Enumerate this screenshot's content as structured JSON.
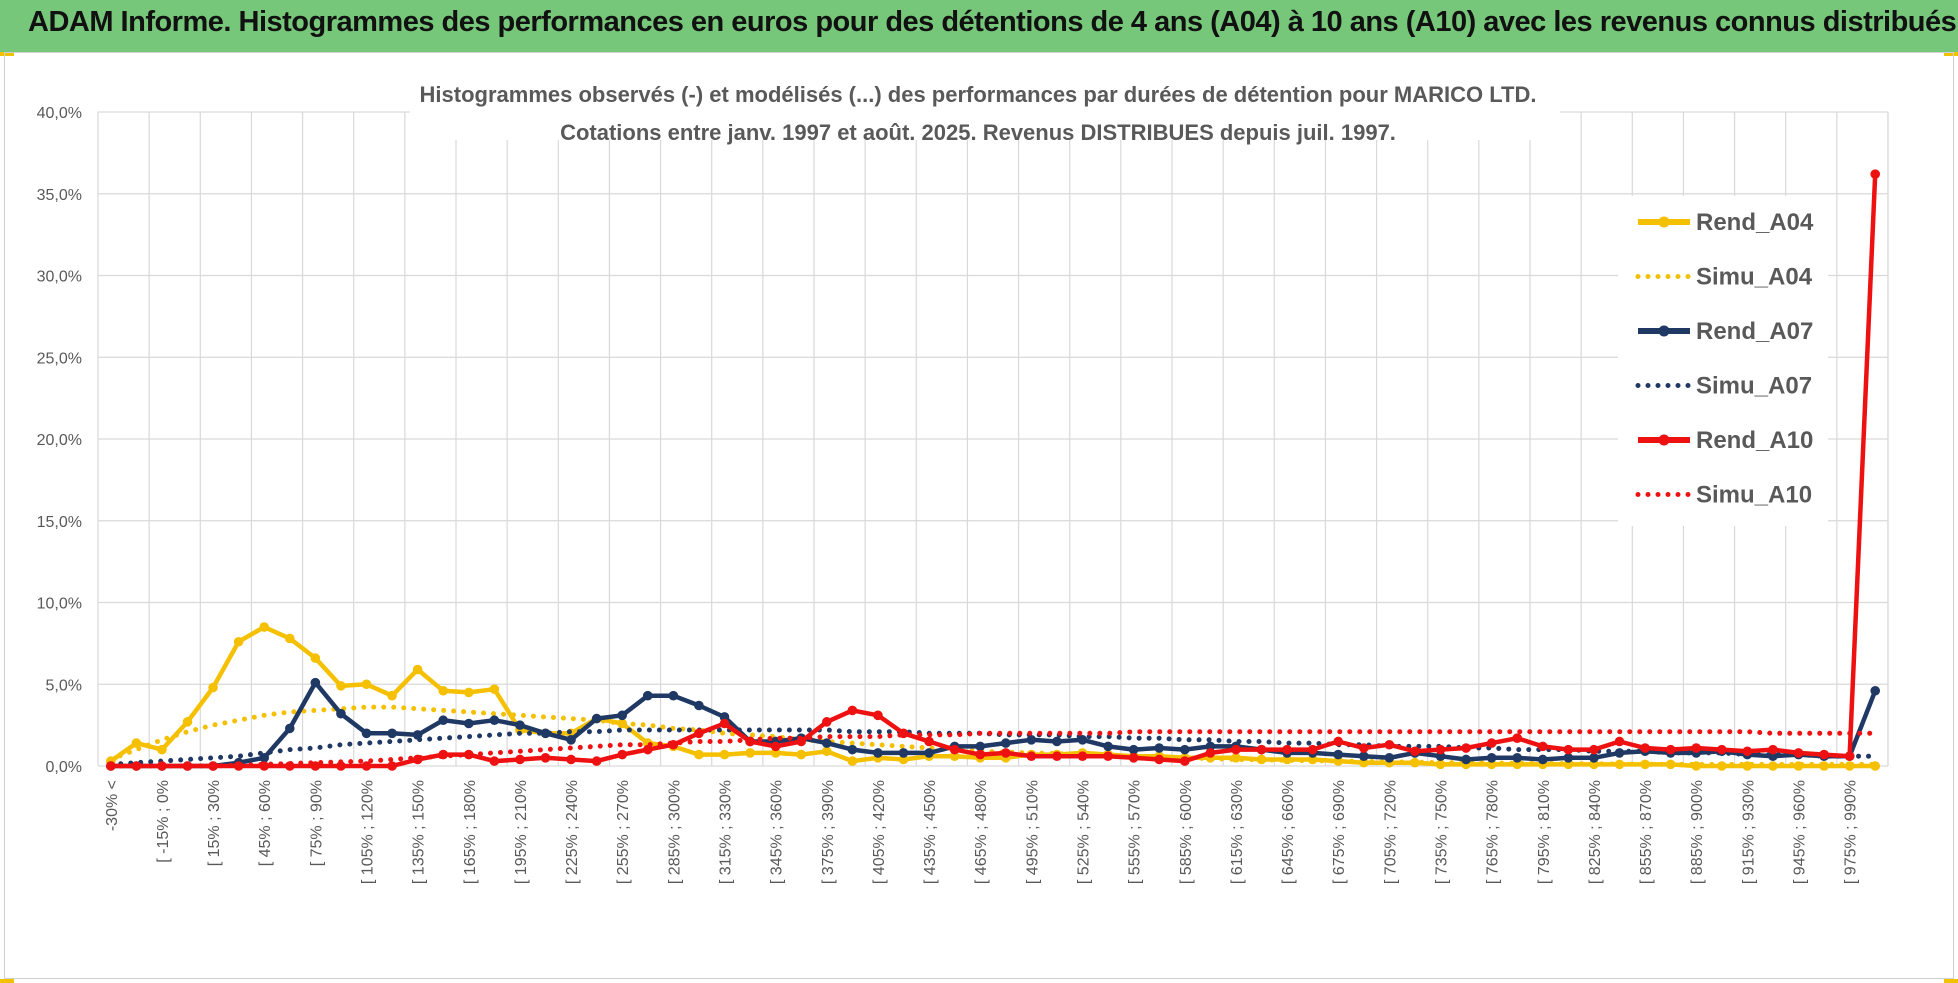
{
  "page": {
    "banner_title": "ADAM Informe. Histogrammes des performances en euros pour des détentions de 4 ans (A04) à 10 ans (A10) avec les revenus connus distribués",
    "banner_color": "#77c77a"
  },
  "chart_data": {
    "type": "line",
    "title": [
      "Histogrammes observés (-) et modélisés (...) des performances par durées de détention pour MARICO LTD.",
      "Cotations entre janv. 1997 et août. 2025. Revenus DISTRIBUES depuis juil. 1997."
    ],
    "xlabel": "",
    "ylabel": "",
    "ylim": [
      0,
      40
    ],
    "yticks": [
      "0,0%",
      "5,0%",
      "10,0%",
      "15,0%",
      "20,0%",
      "25,0%",
      "30,0%",
      "35,0%",
      "40,0%"
    ],
    "grid": true,
    "legend_position": "right",
    "n_points": 70,
    "tick_labels": [
      "-30% <",
      "[ -15% ; 0%",
      "[ 15% ; 30%",
      "[ 45% ; 60%",
      "[ 75% ; 90%",
      "[ 105% ; 120%",
      "[ 135% ; 150%",
      "[ 165% ; 180%",
      "[ 195% ; 210%",
      "[ 225% ; 240%",
      "[ 255% ; 270%",
      "[ 285% ; 300%",
      "[ 315% ; 330%",
      "[ 345% ; 360%",
      "[ 375% ; 390%",
      "[ 405% ; 420%",
      "[ 435% ; 450%",
      "[ 465% ; 480%",
      "[ 495% ; 510%",
      "[ 525% ; 540%",
      "[ 555% ; 570%",
      "[ 585% ; 600%",
      "[ 615% ; 630%",
      "[ 645% ; 660%",
      "[ 675% ; 690%",
      "[ 705% ; 720%",
      "[ 735% ; 750%",
      "[ 765% ; 780%",
      "[ 795% ; 810%",
      "[ 825% ; 840%",
      "[ 855% ; 870%",
      "[ 885% ; 900%",
      "[ 915% ; 930%",
      "[ 945% ; 960%",
      "[ 975% ; 990%"
    ],
    "series": [
      {
        "name": "Rend_A04",
        "color": "#f5c000",
        "style": "solid",
        "values": [
          0.3,
          1.4,
          1.0,
          2.7,
          4.8,
          7.6,
          8.5,
          7.8,
          6.6,
          4.9,
          5.0,
          4.3,
          5.9,
          4.6,
          4.5,
          4.7,
          2.2,
          2.0,
          2.0,
          2.9,
          2.6,
          1.4,
          1.2,
          0.7,
          0.7,
          0.8,
          0.8,
          0.7,
          0.9,
          0.3,
          0.5,
          0.4,
          0.6,
          0.6,
          0.5,
          0.5,
          0.7,
          0.7,
          0.8,
          0.7,
          0.6,
          0.6,
          0.5,
          0.5,
          0.5,
          0.4,
          0.4,
          0.4,
          0.3,
          0.2,
          0.2,
          0.2,
          0.1,
          0.1,
          0.1,
          0.1,
          0.1,
          0.1,
          0.1,
          0.1,
          0.1,
          0.1,
          0.0,
          0.0,
          0.0,
          0.0,
          0.0,
          0.0,
          0.0,
          0.0
        ]
      },
      {
        "name": "Simu_A04",
        "color": "#f5c000",
        "style": "dotted",
        "values": [
          0.4,
          1.0,
          1.6,
          2.1,
          2.5,
          2.8,
          3.1,
          3.3,
          3.4,
          3.5,
          3.6,
          3.6,
          3.5,
          3.4,
          3.3,
          3.2,
          3.1,
          3.0,
          2.9,
          2.8,
          2.6,
          2.5,
          2.3,
          2.2,
          2.0,
          1.9,
          1.8,
          1.6,
          1.5,
          1.4,
          1.3,
          1.2,
          1.1,
          1.0,
          0.9,
          0.85,
          0.8,
          0.75,
          0.7,
          0.65,
          0.6,
          0.55,
          0.5,
          0.45,
          0.4,
          0.38,
          0.35,
          0.32,
          0.3,
          0.28,
          0.25,
          0.23,
          0.21,
          0.2,
          0.18,
          0.17,
          0.15,
          0.14,
          0.13,
          0.12,
          0.11,
          0.1,
          0.1,
          0.1,
          0.1,
          0.1,
          0.1,
          0.1,
          0.1,
          0.1
        ]
      },
      {
        "name": "Rend_A07",
        "color": "#1f3864",
        "style": "solid",
        "values": [
          0.0,
          0.0,
          0.0,
          0.0,
          0.0,
          0.2,
          0.5,
          2.3,
          5.1,
          3.2,
          2.0,
          2.0,
          1.9,
          2.8,
          2.6,
          2.8,
          2.5,
          2.0,
          1.6,
          2.9,
          3.1,
          4.3,
          4.3,
          3.7,
          3.0,
          1.5,
          1.5,
          1.7,
          1.4,
          1.0,
          0.8,
          0.8,
          0.8,
          1.2,
          1.2,
          1.4,
          1.6,
          1.5,
          1.6,
          1.2,
          1.0,
          1.1,
          1.0,
          1.2,
          1.2,
          1.0,
          0.8,
          0.8,
          0.7,
          0.6,
          0.5,
          0.8,
          0.6,
          0.4,
          0.5,
          0.5,
          0.4,
          0.5,
          0.5,
          0.8,
          0.9,
          0.8,
          0.8,
          0.9,
          0.7,
          0.6,
          0.7,
          0.6,
          0.6,
          4.6
        ]
      },
      {
        "name": "Simu_A07",
        "color": "#1f3864",
        "style": "dotted",
        "values": [
          0.1,
          0.2,
          0.3,
          0.4,
          0.5,
          0.6,
          0.8,
          1.0,
          1.1,
          1.3,
          1.4,
          1.5,
          1.6,
          1.7,
          1.8,
          1.9,
          2.0,
          2.0,
          2.1,
          2.1,
          2.2,
          2.2,
          2.2,
          2.2,
          2.2,
          2.2,
          2.2,
          2.2,
          2.2,
          2.1,
          2.1,
          2.1,
          2.0,
          2.0,
          2.0,
          1.9,
          1.9,
          1.9,
          1.8,
          1.8,
          1.7,
          1.7,
          1.6,
          1.6,
          1.5,
          1.5,
          1.4,
          1.4,
          1.3,
          1.3,
          1.2,
          1.2,
          1.2,
          1.1,
          1.1,
          1.0,
          1.0,
          1.0,
          0.9,
          0.9,
          0.9,
          0.8,
          0.8,
          0.8,
          0.7,
          0.7,
          0.7,
          0.6,
          0.6,
          0.6
        ]
      },
      {
        "name": "Rend_A10",
        "color": "#ee1111",
        "style": "solid",
        "values": [
          0.0,
          0.0,
          0.0,
          0.0,
          0.0,
          0.0,
          0.0,
          0.0,
          0.0,
          0.0,
          0.0,
          0.0,
          0.4,
          0.7,
          0.7,
          0.3,
          0.4,
          0.5,
          0.4,
          0.3,
          0.7,
          1.0,
          1.3,
          2.0,
          2.6,
          1.5,
          1.2,
          1.5,
          2.7,
          3.4,
          3.1,
          2.0,
          1.5,
          1.0,
          0.7,
          0.8,
          0.6,
          0.6,
          0.6,
          0.6,
          0.5,
          0.4,
          0.3,
          0.8,
          1.0,
          1.0,
          1.0,
          1.0,
          1.5,
          1.1,
          1.3,
          0.9,
          1.0,
          1.1,
          1.4,
          1.7,
          1.2,
          1.0,
          1.0,
          1.5,
          1.1,
          1.0,
          1.1,
          1.0,
          0.9,
          1.0,
          0.8,
          0.7,
          0.6,
          36.2
        ]
      },
      {
        "name": "Simu_A10",
        "color": "#ee1111",
        "style": "dotted",
        "values": [
          0.0,
          0.0,
          0.0,
          0.0,
          0.0,
          0.05,
          0.1,
          0.15,
          0.2,
          0.25,
          0.3,
          0.4,
          0.5,
          0.6,
          0.7,
          0.8,
          0.9,
          1.0,
          1.1,
          1.2,
          1.3,
          1.3,
          1.4,
          1.5,
          1.5,
          1.6,
          1.7,
          1.7,
          1.8,
          1.8,
          1.8,
          1.9,
          1.9,
          1.9,
          2.0,
          2.0,
          2.0,
          2.0,
          2.0,
          2.0,
          2.1,
          2.1,
          2.1,
          2.1,
          2.1,
          2.1,
          2.1,
          2.1,
          2.1,
          2.1,
          2.1,
          2.1,
          2.1,
          2.1,
          2.1,
          2.1,
          2.1,
          2.1,
          2.1,
          2.1,
          2.1,
          2.1,
          2.1,
          2.1,
          2.1,
          2.0,
          2.0,
          2.0,
          2.0,
          2.0
        ]
      }
    ]
  }
}
